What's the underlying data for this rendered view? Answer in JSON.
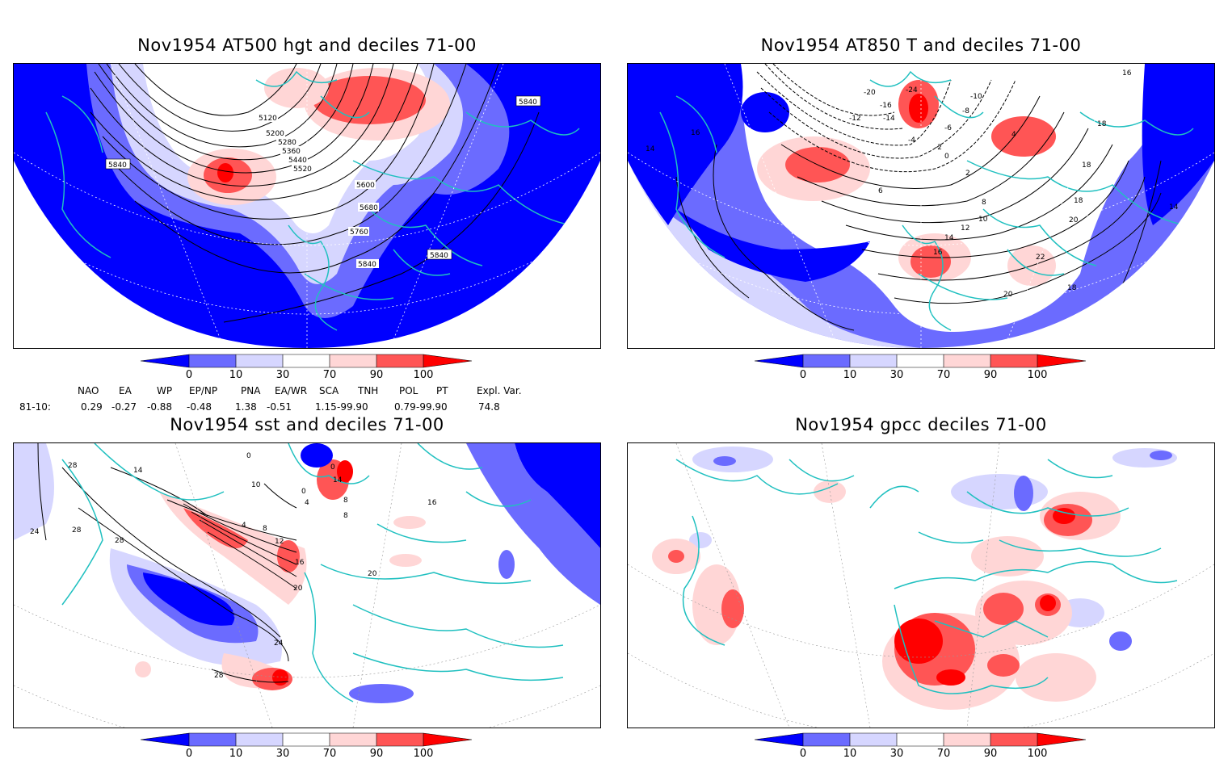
{
  "panels": [
    {
      "title": "Nov1954 AT500 hgt and deciles 71-00",
      "contour_labels": [
        "5120",
        "5200",
        "5280",
        "5360",
        "5440",
        "5520",
        "5600",
        "5680",
        "5760",
        "5840",
        "5840",
        "5840",
        "5840",
        "5840"
      ]
    },
    {
      "title": "Nov1954 AT850 T and deciles 71-00",
      "contour_labels": [
        "-20",
        "-24",
        "-16",
        "-14",
        "-12",
        "-10",
        "-8",
        "-6",
        "-4",
        "-2",
        "0",
        "2",
        "6",
        "4",
        "8",
        "10",
        "12",
        "14",
        "16",
        "18",
        "20",
        "22",
        "16",
        "16",
        "14",
        "14",
        "18",
        "18",
        "18",
        "20"
      ]
    },
    {
      "title": "Nov1954 sst and deciles 71-00",
      "contour_labels": [
        "28",
        "14",
        "24",
        "28",
        "28",
        "10",
        "0",
        "4",
        "0",
        "14",
        "8",
        "4",
        "8",
        "12",
        "16",
        "20",
        "20",
        "24",
        "28",
        "0",
        "8",
        "16"
      ]
    },
    {
      "title": "Nov1954 gpcc deciles 71-00",
      "contour_labels": []
    }
  ],
  "colorbar": {
    "ticks": [
      "0",
      "10",
      "30",
      "70",
      "90",
      "100"
    ],
    "colors": [
      "#0000ff",
      "#6b6bff",
      "#d6d6ff",
      "#ffffff",
      "#ffd6d6",
      "#ff5555",
      "#ff0000"
    ]
  },
  "indices": {
    "headers": [
      "NAO",
      "EA",
      "WP",
      "EP/NP",
      "PNA",
      "EA/WR",
      "SCA",
      "TNH",
      "POL",
      "PT",
      "Expl. Var."
    ],
    "row_label": "81-10:",
    "values": [
      "0.29",
      "-0.27",
      "-0.88",
      "-0.48",
      "1.38",
      "-0.51",
      "1.15",
      "-99.90",
      "0.79",
      "-99.90",
      "74.8"
    ]
  },
  "colors": {
    "coast": "#20c0c0",
    "strong_blue": "#0000ff",
    "mid_blue": "#6b6bff",
    "light_blue": "#d6d6ff",
    "light_red": "#ffd6d6",
    "mid_red": "#ff5555",
    "strong_red": "#ff0000"
  }
}
